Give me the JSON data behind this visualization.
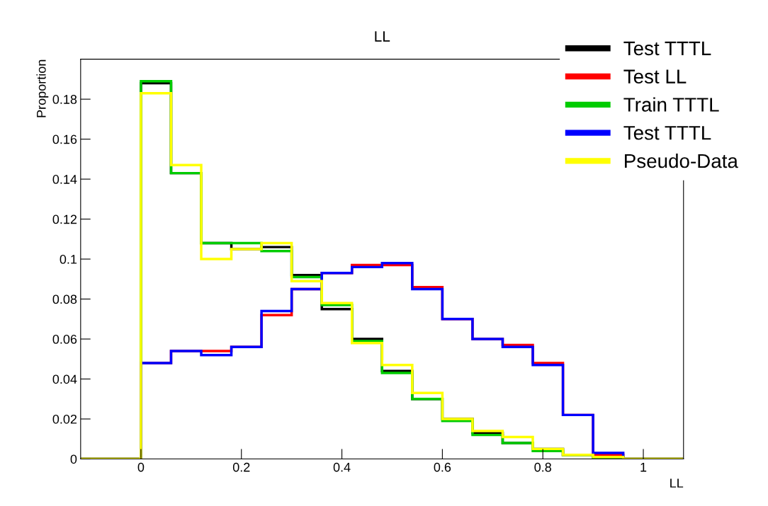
{
  "chart_data": {
    "type": "histogram",
    "title": "LL",
    "xlabel": "LL",
    "ylabel": "Proportion",
    "bins": [
      -0.12,
      -0.06,
      0,
      0.06,
      0.12,
      0.18,
      0.24,
      0.3,
      0.36,
      0.42,
      0.48,
      0.54,
      0.6,
      0.66,
      0.72,
      0.78,
      0.84,
      0.9,
      0.96,
      1.02,
      1.08
    ],
    "series": [
      {
        "name": "Test TTTL",
        "color": "#000000",
        "values": [
          0,
          0,
          0.188,
          0.143,
          0.108,
          0.105,
          0.106,
          0.092,
          0.075,
          0.06,
          0.044,
          0.03,
          0.02,
          0.013,
          0.008,
          0.005,
          0.002,
          0.001,
          0,
          0
        ]
      },
      {
        "name": "Test LL",
        "color": "#ff0000",
        "values": [
          0,
          0,
          0.048,
          0.054,
          0.054,
          0.056,
          0.072,
          0.085,
          0.093,
          0.097,
          0.097,
          0.086,
          0.07,
          0.06,
          0.057,
          0.048,
          0.022,
          0.002,
          0,
          0
        ]
      },
      {
        "name": "Train TTTL",
        "color": "#00cc00",
        "values": [
          0,
          0,
          0.189,
          0.143,
          0.108,
          0.108,
          0.104,
          0.091,
          0.077,
          0.059,
          0.043,
          0.03,
          0.019,
          0.012,
          0.008,
          0.004,
          0.002,
          0.0005,
          0,
          0
        ]
      },
      {
        "name": "Test TTTL",
        "color": "#0000ff",
        "values": [
          0,
          0,
          0.048,
          0.054,
          0.052,
          0.056,
          0.074,
          0.085,
          0.093,
          0.096,
          0.098,
          0.085,
          0.07,
          0.06,
          0.056,
          0.047,
          0.022,
          0.003,
          0,
          0
        ]
      },
      {
        "name": "Pseudo-Data",
        "color": "#ffff00",
        "values": [
          0,
          0,
          0.183,
          0.147,
          0.1,
          0.105,
          0.108,
          0.089,
          0.078,
          0.058,
          0.047,
          0.033,
          0.02,
          0.014,
          0.011,
          0.005,
          0.002,
          0.001,
          0,
          0
        ]
      }
    ],
    "xlim": [
      -0.12,
      1.08
    ],
    "ylim": [
      0,
      0.2
    ],
    "xticks": [
      0,
      0.2,
      0.4,
      0.6,
      0.8,
      1
    ],
    "yticks": [
      0,
      0.02,
      0.04,
      0.06,
      0.08,
      0.1,
      0.12,
      0.14,
      0.16,
      0.18
    ],
    "legend": "top right"
  }
}
